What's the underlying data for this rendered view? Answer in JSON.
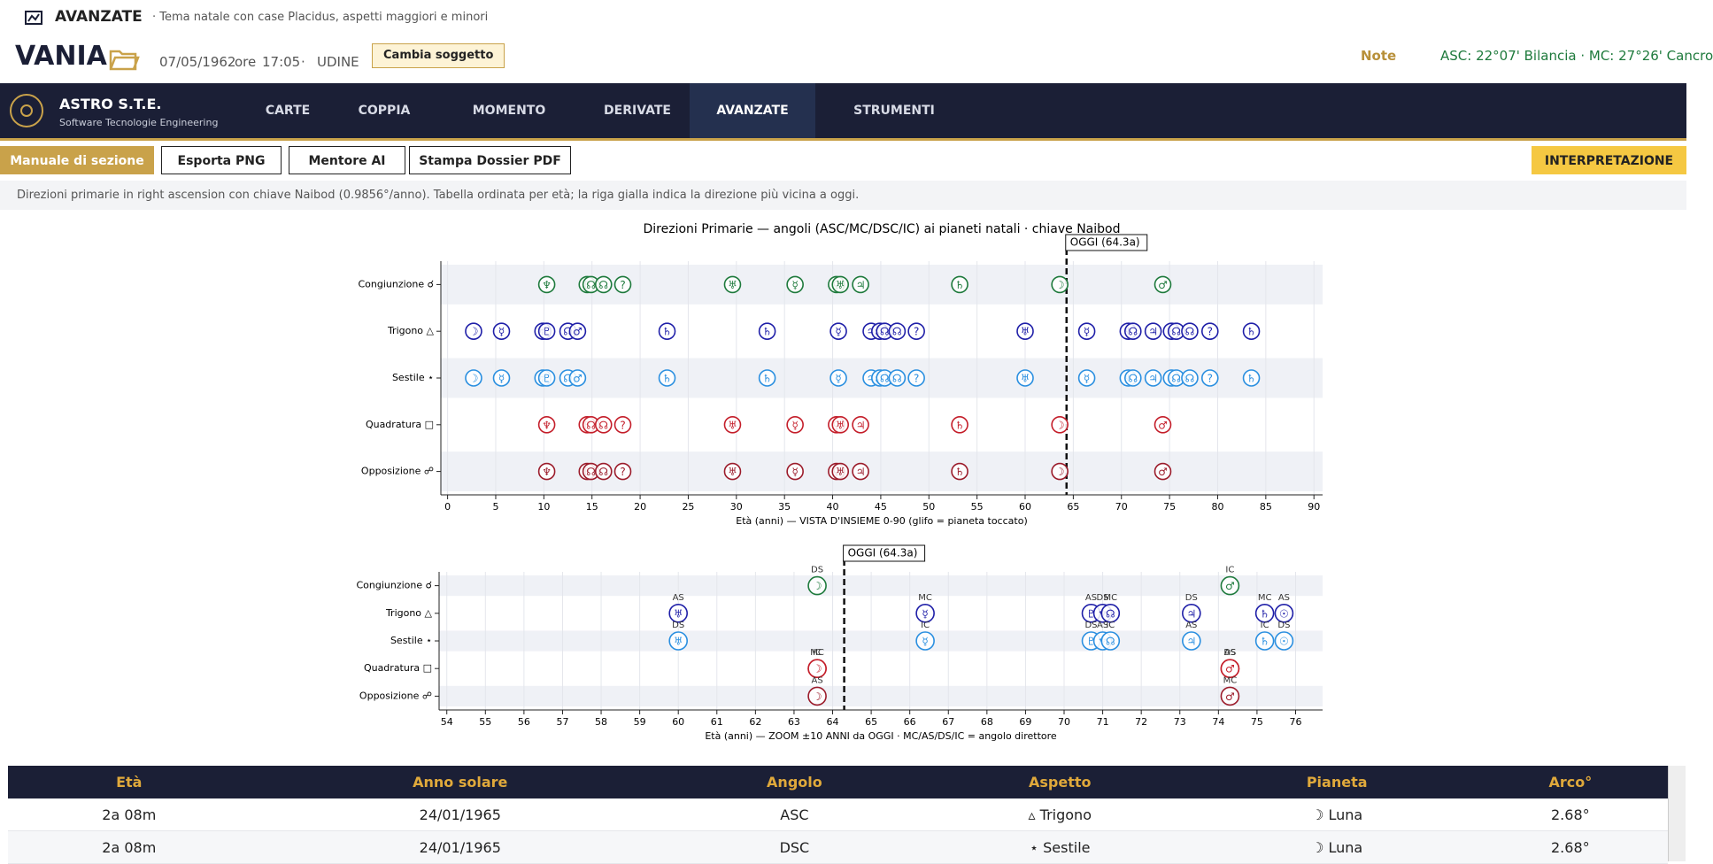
{
  "header": {
    "section": "AVANZATE",
    "subtitle": "· Tema natale con case Placidus, aspetti maggiori e minori",
    "subject": "VANIA",
    "date": "07/05/1962",
    "ore": "ore",
    "time": "17:05",
    "sep": "·",
    "place": "UDINE",
    "change": "Cambia soggetto",
    "notes": "Note",
    "angles": "ASC: 22°07' Bilancia · MC: 27°26' Cancro"
  },
  "nav": {
    "brand": "ASTRO S.T.E.",
    "tagline": "Software Tecnologie Engineering",
    "items": [
      "CARTE",
      "COPPIA",
      "MOMENTO",
      "DERIVATE",
      "AVANZATE",
      "STRUMENTI"
    ]
  },
  "toolbar": {
    "buttons": [
      "Manuale di sezione",
      "Esporta PNG",
      "Mentore AI",
      "Stampa Dossier PDF"
    ],
    "interpretation": "INTERPRETAZIONE"
  },
  "info": "Direzioni primarie in right ascension con chiave Naibod (0.9856°/anno). Tabella ordinata per età; la riga gialla indica la direzione più vicina a oggi.",
  "chart_data": [
    {
      "type": "scatter",
      "title": "Direzioni Primarie — angoli (ASC/MC/DSC/IC) ai pianeti natali · chiave Naibod",
      "x_label": "Età (anni) — VISTA D'INSIEME 0-90 (glifo = pianeta toccato)",
      "xlim": [
        -0.7,
        90.9
      ],
      "xticks": [
        0,
        5,
        10,
        15,
        20,
        25,
        30,
        35,
        40,
        45,
        50,
        55,
        60,
        65,
        70,
        75,
        80,
        85,
        90
      ],
      "grid": true,
      "today": {
        "value": 64.3,
        "label": "OGGI (64.3a)"
      },
      "series": [
        {
          "name": "Congiunzione ☌",
          "color": "#1e7a3c",
          "x": [
            10.3,
            14.5,
            14.9,
            16.2,
            18.2,
            29.6,
            36.1,
            40.4,
            40.8,
            42.9,
            53.2,
            63.6,
            74.3
          ],
          "glyphs": [
            "♆",
            "♇",
            "☊",
            "☊",
            "?",
            "♅",
            "☿",
            "♀",
            "♅",
            "♃",
            "♄",
            "☽",
            "♂"
          ]
        },
        {
          "name": "Trigono △",
          "color": "#1f1fa8",
          "x": [
            2.7,
            5.6,
            9.9,
            10.3,
            12.5,
            13.5,
            22.8,
            33.2,
            40.6,
            44.0,
            44.9,
            45.4,
            46.7,
            48.7,
            60.0,
            66.4,
            70.7,
            71.2,
            73.3,
            75.2,
            75.7,
            77.1,
            79.2,
            83.5
          ],
          "glyphs": [
            "☽",
            "☿",
            "♅",
            "♇",
            "☊",
            "♂",
            "♄",
            "♄",
            "☿",
            "♃",
            "☊",
            "☊",
            "☊",
            "?",
            "♅",
            "☿",
            "♆",
            "☊",
            "♃",
            "♄",
            "☊",
            "☊",
            "?",
            "♄"
          ]
        },
        {
          "name": "Sestile ⋆",
          "color": "#2a8fe0",
          "x": [
            2.7,
            5.6,
            9.9,
            10.3,
            12.5,
            13.5,
            22.8,
            33.2,
            40.6,
            44.0,
            44.9,
            45.4,
            46.7,
            48.7,
            60.0,
            66.4,
            70.7,
            71.2,
            73.3,
            75.2,
            75.7,
            77.1,
            79.2,
            83.5
          ],
          "glyphs": [
            "☽",
            "☿",
            "♅",
            "♇",
            "☊",
            "♂",
            "♄",
            "♄",
            "☿",
            "♃",
            "☊",
            "☊",
            "☊",
            "?",
            "♅",
            "☿",
            "♆",
            "☊",
            "♃",
            "♄",
            "☊",
            "☊",
            "?",
            "♄"
          ]
        },
        {
          "name": "Quadratura □",
          "color": "#c41e2a",
          "x": [
            10.3,
            14.5,
            14.9,
            16.2,
            18.2,
            29.6,
            36.1,
            40.4,
            40.8,
            42.9,
            53.2,
            63.6,
            74.3
          ],
          "glyphs": [
            "♆",
            "♇",
            "☊",
            "☊",
            "?",
            "♅",
            "☿",
            "♀",
            "♅",
            "♃",
            "♄",
            "☽",
            "♂"
          ]
        },
        {
          "name": "Opposizione ☍",
          "color": "#9b1b2a",
          "x": [
            10.3,
            14.5,
            14.9,
            16.2,
            18.2,
            29.6,
            36.1,
            40.4,
            40.8,
            42.9,
            53.2,
            63.6,
            74.3
          ],
          "glyphs": [
            "♆",
            "♇",
            "☊",
            "☊",
            "?",
            "♅",
            "☿",
            "♀",
            "♅",
            "♃",
            "♄",
            "☽",
            "♂"
          ]
        }
      ]
    },
    {
      "type": "scatter",
      "x_label": "Età (anni) — ZOOM ±10 ANNI da OGGI · MC/AS/DS/IC = angolo direttore",
      "xlim": [
        53.8,
        76.7
      ],
      "xticks": [
        54,
        55,
        56,
        57,
        58,
        59,
        60,
        61,
        62,
        63,
        64,
        65,
        66,
        67,
        68,
        69,
        70,
        71,
        72,
        73,
        74,
        75,
        76
      ],
      "grid": true,
      "today": {
        "value": 64.3,
        "label": "OGGI (64.3a)"
      },
      "series": [
        {
          "name": "Congiunzione ☌",
          "color": "#1e7a3c",
          "x": [
            63.6,
            74.3
          ],
          "glyphs": [
            "☽",
            "♂"
          ],
          "angles": [
            "DS",
            "IC"
          ]
        },
        {
          "name": "Trigono △",
          "color": "#1f1fa8",
          "x": [
            60.0,
            66.4,
            70.7,
            71.0,
            71.2,
            73.3,
            75.2,
            75.7
          ],
          "glyphs": [
            "♅",
            "☿",
            "♇",
            "♆",
            "☊",
            "♃",
            "♄",
            "☉"
          ],
          "angles": [
            "AS",
            "MC",
            "AS",
            "DS",
            "MC",
            "DS",
            "MC",
            "AS"
          ]
        },
        {
          "name": "Sestile ⋆",
          "color": "#2a8fe0",
          "x": [
            60.0,
            66.4,
            70.7,
            71.0,
            71.2,
            73.3,
            75.2,
            75.7
          ],
          "glyphs": [
            "♅",
            "☿",
            "♇",
            "♆",
            "☊",
            "♃",
            "♄",
            "☉"
          ],
          "angles": [
            "DS",
            "IC",
            "DS",
            "AS",
            "IC",
            "AS",
            "IC",
            "DS"
          ]
        },
        {
          "name": "Quadratura □",
          "color": "#c41e2a",
          "x": [
            63.6,
            63.6,
            74.3,
            74.3
          ],
          "glyphs": [
            "☽",
            "☽",
            "♂",
            "♂"
          ],
          "angles": [
            "MC",
            "IC",
            "AS",
            "DS"
          ]
        },
        {
          "name": "Opposizione ☍",
          "color": "#9b1b2a",
          "x": [
            63.6,
            74.3
          ],
          "glyphs": [
            "☽",
            "♂"
          ],
          "angles": [
            "AS",
            "MC"
          ]
        }
      ]
    }
  ],
  "table": {
    "headers": [
      "Età",
      "Anno solare",
      "Angolo",
      "Aspetto",
      "Pianeta",
      "Arco°"
    ],
    "rows": [
      [
        "2a 08m",
        "24/01/1965",
        "ASC",
        "▵ Trigono",
        "☽ Luna",
        "2.68°"
      ],
      [
        "2a 08m",
        "24/01/1965",
        "DSC",
        "⋆ Sestile",
        "☽ Luna",
        "2.68°"
      ]
    ]
  }
}
